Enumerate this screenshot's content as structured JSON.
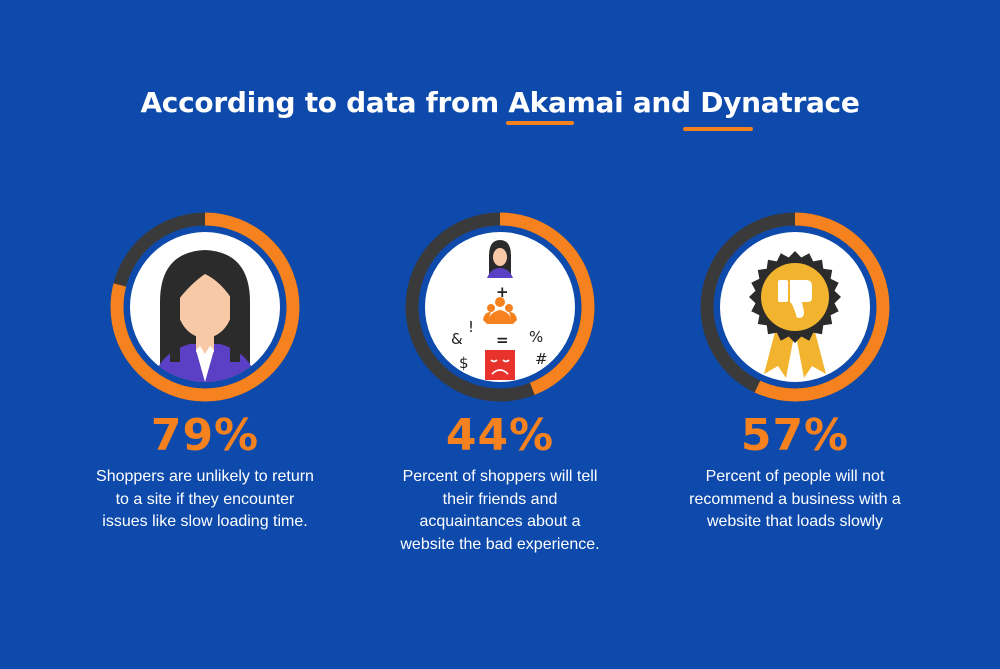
{
  "title": {
    "prefix": "According to data from ",
    "brand1": "Akamai",
    "middle": " and ",
    "brand2": "Dynatrace"
  },
  "colors": {
    "background": "#0d4aab",
    "accent": "#f5821f",
    "ring_track": "#3a3a3a",
    "text": "#ffffff"
  },
  "stats": [
    {
      "value": "79%",
      "fraction": 0.79,
      "icon": "woman-avatar-icon",
      "lines": [
        "Shoppers are unlikely to return",
        "to a site if they encounter",
        "issues like slow loading time."
      ]
    },
    {
      "value": "44%",
      "fraction": 0.44,
      "icon": "bad-word-of-mouth-icon",
      "lines": [
        "Percent of shoppers will tell",
        "their friends and",
        "acquaintances about a",
        "website the bad experience."
      ]
    },
    {
      "value": "57%",
      "fraction": 0.57,
      "icon": "thumbs-down-badge-icon",
      "lines": [
        "Percent of people will not",
        "recommend a business with a",
        "website that loads slowly"
      ]
    }
  ],
  "symbols": {
    "plus": "+",
    "equals": "=",
    "exclaim": "!",
    "amp": "&",
    "percent": "%",
    "dollar": "$",
    "hash": "#"
  }
}
